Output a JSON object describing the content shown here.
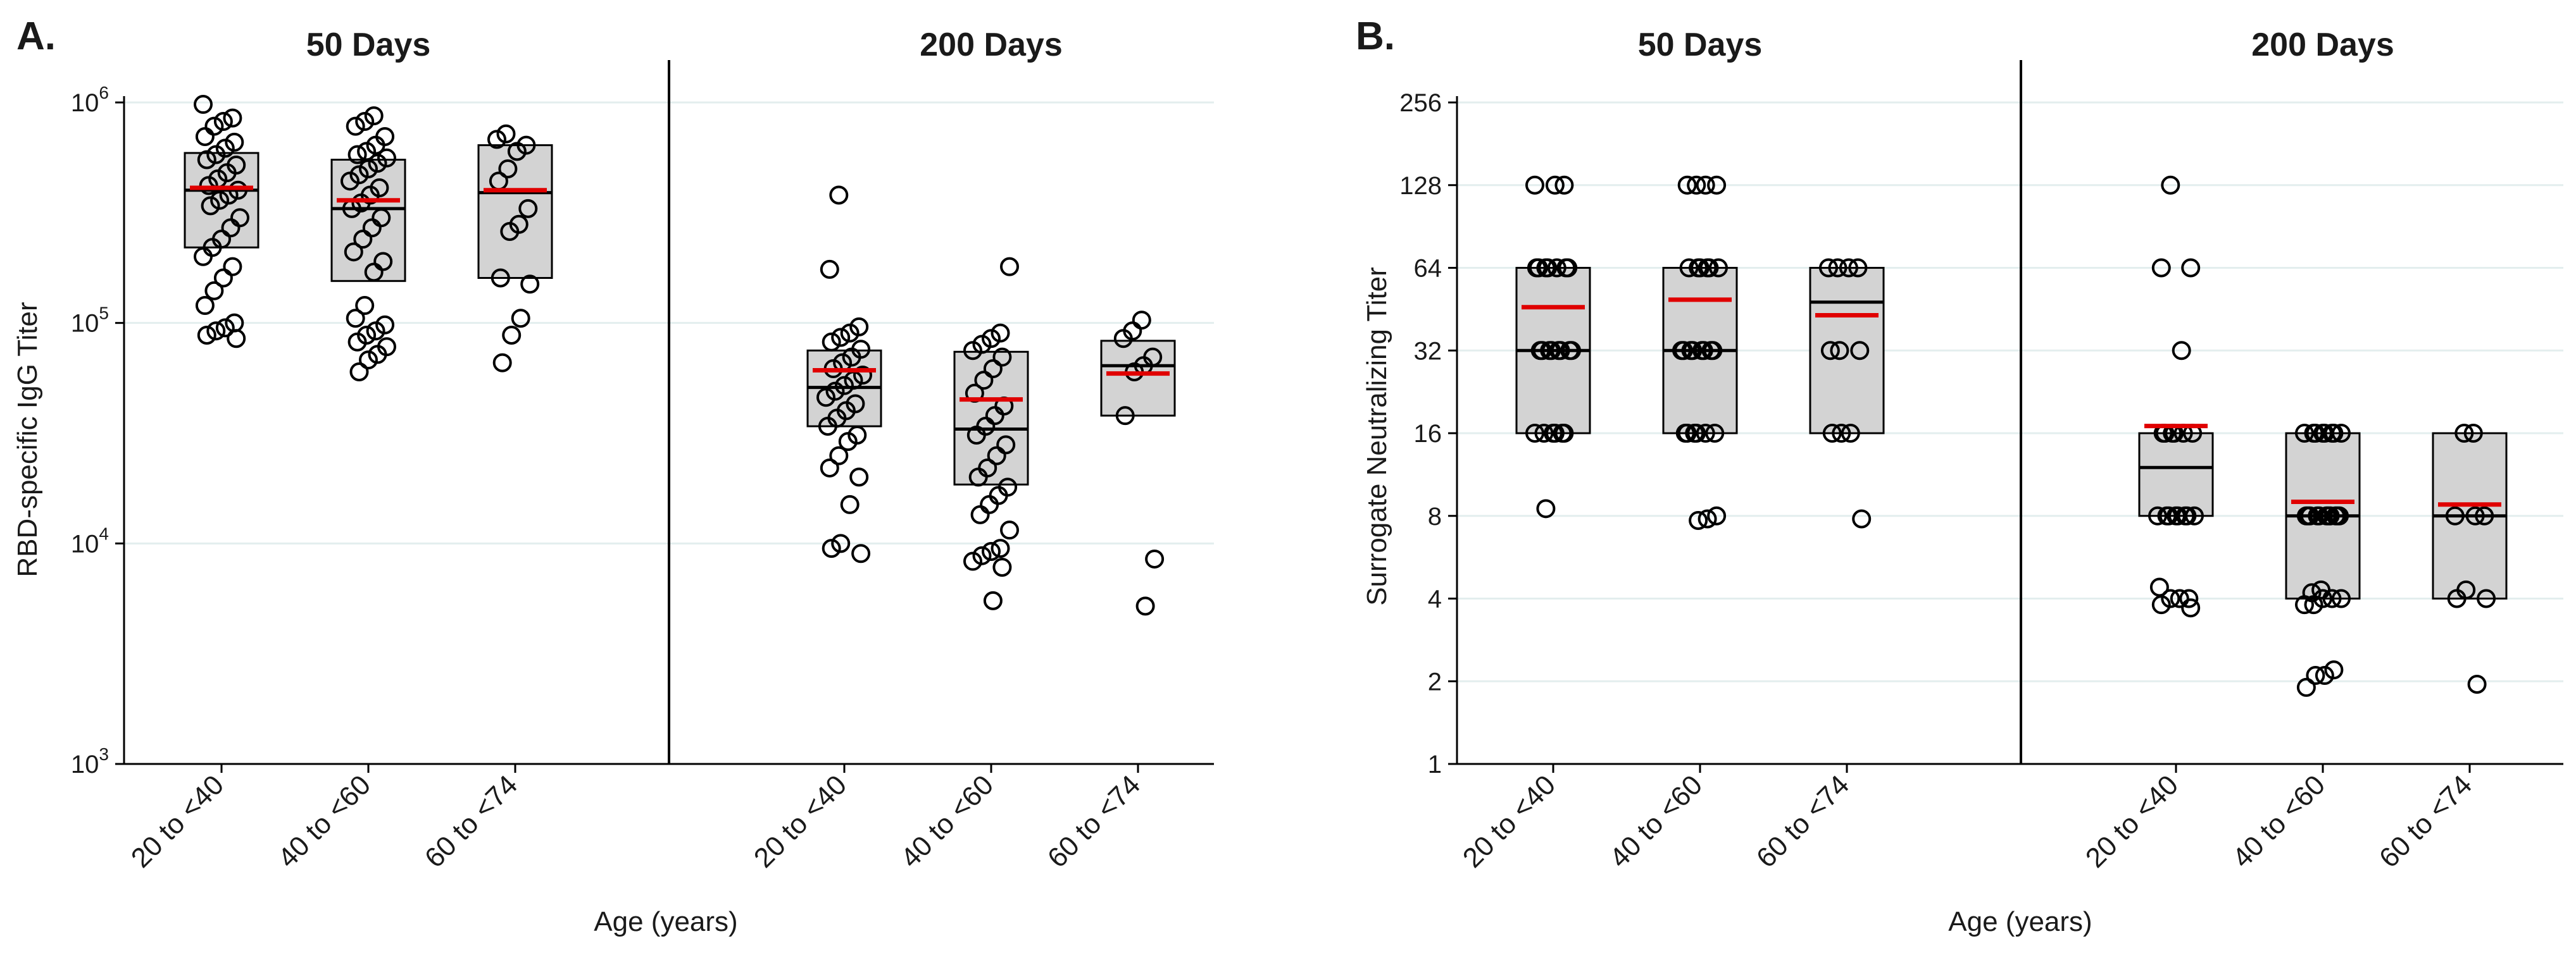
{
  "colors": {
    "box_fill": "#d3d3d3",
    "mean_line": "#e00000",
    "median_line": "#000000",
    "grid": "#e3eeee"
  },
  "chart_data": [
    {
      "type": "box",
      "panel_label": "A.",
      "ylabel": "RBD-specific IgG Titer",
      "xlabel": "Age (years)",
      "yscale": "log10",
      "ylim": [
        1000,
        1000000
      ],
      "y_ticks": [
        {
          "value": 1000,
          "base": "10",
          "exp": "3"
        },
        {
          "value": 10000,
          "base": "10",
          "exp": "4"
        },
        {
          "value": 100000,
          "base": "10",
          "exp": "5"
        },
        {
          "value": 1000000,
          "base": "10",
          "exp": "6"
        }
      ],
      "categories": [
        "20 to <40",
        "40 to <60",
        "60 to <74"
      ],
      "facets": [
        {
          "title": "50 Days",
          "groups": [
            {
              "category": "20 to <40",
              "q1": 220000,
              "median": 400000,
              "q3": 590000,
              "mean": 410000,
              "points": [
                980000,
                850000,
                820000,
                780000,
                700000,
                660000,
                620000,
                580000,
                550000,
                520000,
                480000,
                450000,
                420000,
                400000,
                380000,
                360000,
                340000,
                300000,
                270000,
                240000,
                220000,
                200000,
                180000,
                160000,
                140000,
                120000,
                100000,
                95000,
                92000,
                88000,
                85000
              ]
            },
            {
              "category": "40 to <60",
              "q1": 155000,
              "median": 330000,
              "q3": 550000,
              "mean": 360000,
              "points": [
                870000,
                820000,
                780000,
                700000,
                640000,
                600000,
                580000,
                560000,
                530000,
                500000,
                470000,
                440000,
                410000,
                380000,
                350000,
                330000,
                300000,
                270000,
                240000,
                210000,
                190000,
                170000,
                120000,
                105000,
                98000,
                92000,
                88000,
                82000,
                78000,
                72000,
                68000,
                60000
              ]
            },
            {
              "category": "60 to <74",
              "q1": 160000,
              "median": 390000,
              "q3": 640000,
              "mean": 400000,
              "points": [
                720000,
                680000,
                640000,
                600000,
                500000,
                440000,
                330000,
                280000,
                260000,
                160000,
                150000,
                105000,
                88000,
                66000
              ]
            }
          ]
        },
        {
          "title": "200 Days",
          "groups": [
            {
              "category": "20 to <40",
              "q1": 34000,
              "median": 51000,
              "q3": 75000,
              "mean": 61000,
              "points": [
                380000,
                175000,
                96000,
                90000,
                86000,
                82000,
                76000,
                70000,
                66000,
                62000,
                58000,
                55000,
                52000,
                49000,
                46000,
                43000,
                40000,
                37000,
                34000,
                31000,
                29000,
                25000,
                22000,
                20000,
                15000,
                10000,
                9500,
                9000
              ]
            },
            {
              "category": "40 to <60",
              "q1": 18500,
              "median": 33000,
              "q3": 74000,
              "mean": 45000,
              "points": [
                180000,
                90000,
                85000,
                80000,
                75000,
                70000,
                62000,
                55000,
                48000,
                42000,
                38000,
                34000,
                31000,
                28000,
                25000,
                22000,
                20000,
                18000,
                16500,
                15000,
                13500,
                11500,
                9500,
                9200,
                8800,
                8300,
                7800,
                5500
              ]
            },
            {
              "category": "60 to <74",
              "q1": 38000,
              "median": 64000,
              "q3": 83000,
              "mean": 59000,
              "points": [
                103000,
                92000,
                85000,
                70000,
                64000,
                60000,
                38000,
                8500,
                5200
              ]
            }
          ]
        }
      ]
    },
    {
      "type": "box",
      "panel_label": "B.",
      "ylabel": "Surrogate Neutralizing Titer",
      "xlabel": "Age (years)",
      "yscale": "log2",
      "ylim": [
        1,
        256
      ],
      "y_ticks": [
        {
          "value": 1,
          "label": "1"
        },
        {
          "value": 2,
          "label": "2"
        },
        {
          "value": 4,
          "label": "4"
        },
        {
          "value": 8,
          "label": "8"
        },
        {
          "value": 16,
          "label": "16"
        },
        {
          "value": 32,
          "label": "32"
        },
        {
          "value": 64,
          "label": "64"
        },
        {
          "value": 128,
          "label": "128"
        },
        {
          "value": 256,
          "label": "256"
        }
      ],
      "categories": [
        "20 to <40",
        "40 to <60",
        "60 to <74"
      ],
      "facets": [
        {
          "title": "50 Days",
          "groups": [
            {
              "category": "20 to <40",
              "q1": 16,
              "median": 32,
              "q3": 64,
              "mean": 46,
              "points": [
                128,
                128,
                128,
                64,
                64,
                64,
                64,
                64,
                64,
                64,
                32,
                32,
                32,
                32,
                32,
                32,
                32,
                32,
                16,
                16,
                16,
                16,
                16,
                16,
                8.5
              ]
            },
            {
              "category": "40 to <60",
              "q1": 16,
              "median": 32,
              "q3": 64,
              "mean": 49,
              "points": [
                128,
                128,
                128,
                128,
                64,
                64,
                64,
                64,
                64,
                64,
                32,
                32,
                32,
                32,
                32,
                32,
                32,
                32,
                16,
                16,
                16,
                16,
                16,
                16,
                8,
                7.8,
                7.7
              ]
            },
            {
              "category": "60 to <74",
              "q1": 16,
              "median": 48,
              "q3": 64,
              "mean": 43,
              "points": [
                64,
                64,
                64,
                64,
                32,
                32,
                32,
                16,
                16,
                16,
                7.8
              ]
            }
          ]
        },
        {
          "title": "200 Days",
          "groups": [
            {
              "category": "20 to <40",
              "q1": 8,
              "median": 12,
              "q3": 16,
              "mean": 17,
              "points": [
                128,
                64,
                64,
                32,
                16,
                16,
                16,
                16,
                16,
                16,
                8,
                8,
                8,
                8,
                8,
                8,
                8,
                8,
                4.4,
                4,
                4,
                4,
                3.8,
                3.7
              ]
            },
            {
              "category": "40 to <60",
              "q1": 4,
              "median": 8,
              "q3": 16,
              "mean": 9,
              "points": [
                16,
                16,
                16,
                16,
                16,
                16,
                16,
                16,
                8,
                8,
                8,
                8,
                8,
                8,
                8,
                8,
                8,
                8,
                8,
                4.3,
                4.2,
                4,
                4,
                4,
                3.8,
                3.8,
                2.2,
                2.1,
                2.1,
                1.9
              ]
            },
            {
              "category": "60 to <74",
              "q1": 4,
              "median": 8,
              "q3": 16,
              "mean": 8.8,
              "points": [
                16,
                16,
                8,
                8,
                8,
                4.3,
                4,
                4,
                1.95
              ]
            }
          ]
        }
      ]
    }
  ]
}
